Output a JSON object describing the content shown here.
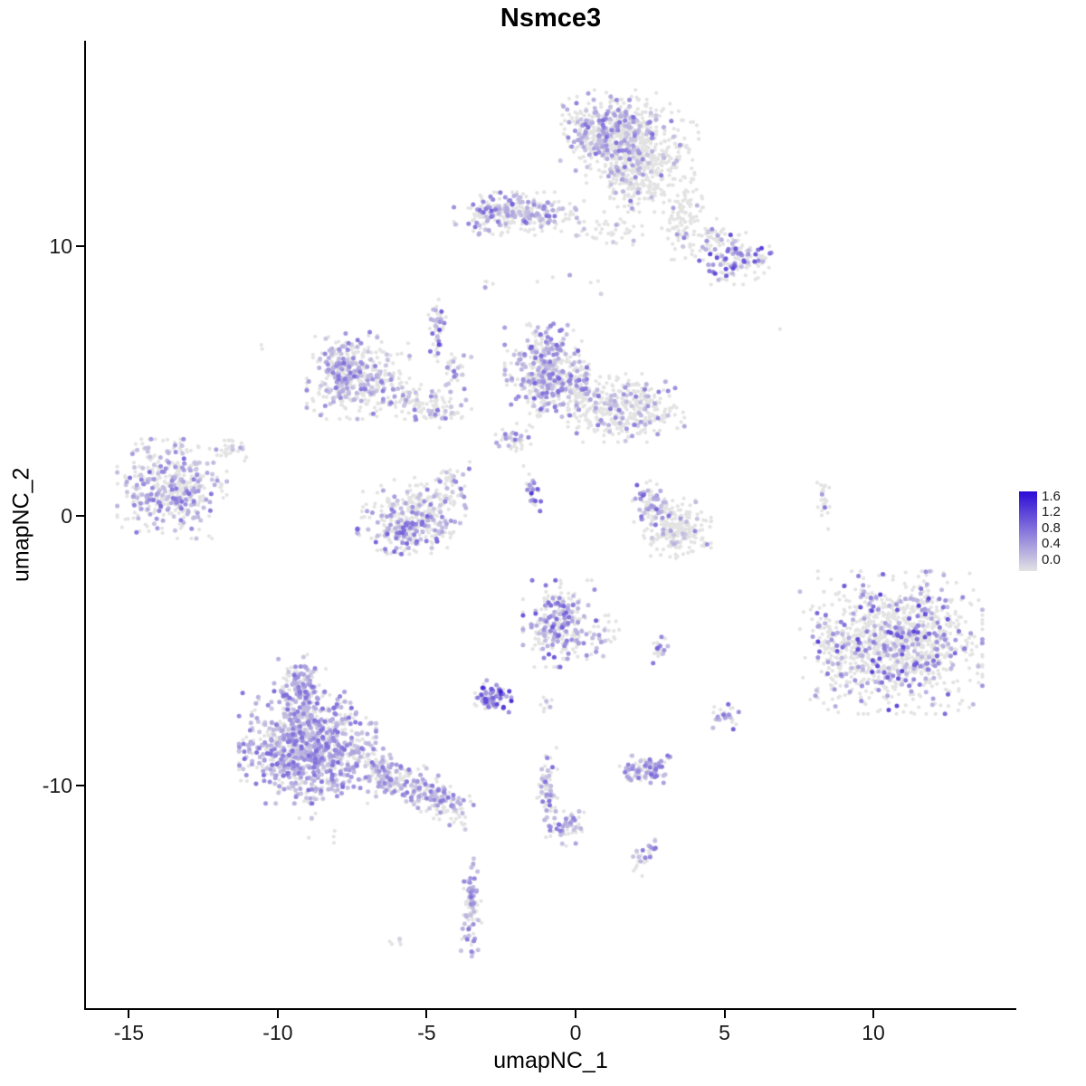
{
  "title": "Nsmce3",
  "axes": {
    "x": {
      "label": "umapNC_1",
      "ticks": [
        -15,
        -10,
        -5,
        0,
        5,
        10
      ]
    },
    "y": {
      "label": "umapNC_2",
      "ticks": [
        -10,
        0,
        10
      ]
    }
  },
  "legend": {
    "ticks": [
      "1.6",
      "1.2",
      "0.8",
      "0.4",
      "0.0"
    ]
  },
  "chart_data": {
    "type": "scatter",
    "title": "Nsmce3",
    "xlabel": "umapNC_1",
    "ylabel": "umapNC_2",
    "xlim": [
      -16.44,
      14.77
    ],
    "ylim": [
      -18.26,
      17.62
    ],
    "grid": false,
    "legend_position": "right",
    "color_scale": {
      "low": "#E3E3E3",
      "high": "#2B0BD5",
      "max": 1.6
    },
    "point_radius_px": 2.1,
    "expressed_point_radius_px": 2.5,
    "seed": 7,
    "clusters": [
      {
        "name": "top-main-left",
        "cx": 1.1,
        "cy": 14.3,
        "sx": 0.7,
        "sy": 0.65,
        "n": 430,
        "frac": 0.35,
        "int": 0.55
      },
      {
        "name": "top-main-right",
        "cx": 2.3,
        "cy": 13.6,
        "sx": 0.85,
        "sy": 0.8,
        "n": 400,
        "frac": 0.12,
        "int": 0.5
      },
      {
        "name": "top-main-lower",
        "cx": 2.0,
        "cy": 12.3,
        "sx": 0.5,
        "sy": 0.45,
        "n": 130,
        "frac": 0.15,
        "int": 0.5
      },
      {
        "name": "top-tail",
        "cx": 3.7,
        "cy": 11.0,
        "sx": 0.35,
        "sy": 0.65,
        "n": 110,
        "frac": 0.12,
        "int": 0.5
      },
      {
        "name": "top-strip",
        "cx": -1.9,
        "cy": 11.2,
        "sx": 0.95,
        "sy": 0.35,
        "n": 240,
        "frac": 0.35,
        "int": 0.55
      },
      {
        "name": "top-strip-left",
        "cx": -2.8,
        "cy": 11.3,
        "sx": 0.35,
        "sy": 0.3,
        "n": 60,
        "frac": 0.5,
        "int": 0.6
      },
      {
        "name": "strip-scatter",
        "cx": 1.1,
        "cy": 10.6,
        "sx": 0.5,
        "sy": 0.3,
        "n": 40,
        "frac": 0.12,
        "int": 0.4
      },
      {
        "name": "top-right-blob",
        "cx": 5.4,
        "cy": 9.5,
        "sx": 0.6,
        "sy": 0.4,
        "n": 150,
        "frac": 0.3,
        "int": 0.75
      },
      {
        "name": "top-right-upper",
        "cx": 4.8,
        "cy": 10.3,
        "sx": 0.4,
        "sy": 0.4,
        "n": 40,
        "frac": 0.15,
        "int": 0.5
      },
      {
        "name": "dot-pair",
        "cx": -2.9,
        "cy": 8.6,
        "sx": 0.12,
        "sy": 0.12,
        "n": 5,
        "frac": 0.2,
        "int": 0.4
      },
      {
        "name": "sparse-nine",
        "cx": -0.3,
        "cy": 8.9,
        "sx": 0.8,
        "sy": 0.3,
        "n": 6,
        "frac": 0.1,
        "int": 0.3
      },
      {
        "name": "midleft-main",
        "cx": -7.3,
        "cy": 5.2,
        "sx": 0.75,
        "sy": 0.7,
        "n": 360,
        "frac": 0.35,
        "int": 0.5
      },
      {
        "name": "midleft-dense",
        "cx": -7.9,
        "cy": 5.4,
        "sx": 0.3,
        "sy": 0.45,
        "n": 90,
        "frac": 0.55,
        "int": 0.55
      },
      {
        "name": "midleft-arm",
        "cx": -5.0,
        "cy": 4.1,
        "sx": 0.65,
        "sy": 0.3,
        "n": 110,
        "frac": 0.3,
        "int": 0.5,
        "rot": -15
      },
      {
        "name": "midleft-vstrip",
        "cx": -4.65,
        "cy": 6.8,
        "sx": 0.13,
        "sy": 0.55,
        "n": 50,
        "frac": 0.5,
        "int": 0.7
      },
      {
        "name": "midleft-diag",
        "cx": -4.0,
        "cy": 5.4,
        "sx": 0.25,
        "sy": 0.35,
        "n": 35,
        "frac": 0.3,
        "int": 0.5
      },
      {
        "name": "center-top",
        "cx": -1.0,
        "cy": 5.4,
        "sx": 0.6,
        "sy": 0.75,
        "n": 420,
        "frac": 0.45,
        "int": 0.6
      },
      {
        "name": "center-top-right",
        "cx": 1.7,
        "cy": 4.0,
        "sx": 0.85,
        "sy": 0.55,
        "n": 360,
        "frac": 0.18,
        "int": 0.5
      },
      {
        "name": "center-bridge",
        "cx": 0.2,
        "cy": 4.7,
        "sx": 0.35,
        "sy": 0.5,
        "n": 60,
        "frac": 0.3,
        "int": 0.5
      },
      {
        "name": "small-below",
        "cx": -2.0,
        "cy": 2.85,
        "sx": 0.3,
        "sy": 0.25,
        "n": 45,
        "frac": 0.3,
        "int": 0.5
      },
      {
        "name": "diag-streak",
        "cx": -1.5,
        "cy": 1.1,
        "sx": 0.1,
        "sy": 0.42,
        "n": 32,
        "frac": 0.55,
        "int": 0.8,
        "rot": 10
      },
      {
        "name": "left-main",
        "cx": -13.55,
        "cy": 1.0,
        "sx": 0.8,
        "sy": 0.8,
        "n": 430,
        "frac": 0.35,
        "int": 0.55
      },
      {
        "name": "left-tail",
        "cx": -11.6,
        "cy": 2.5,
        "sx": 0.3,
        "sy": 0.25,
        "n": 30,
        "frac": 0.2,
        "int": 0.4
      },
      {
        "name": "hook-bottom",
        "cx": -5.6,
        "cy": -0.5,
        "sx": 0.75,
        "sy": 0.4,
        "n": 240,
        "frac": 0.45,
        "int": 0.6
      },
      {
        "name": "hook-top",
        "cx": -5.3,
        "cy": 0.5,
        "sx": 0.8,
        "sy": 0.4,
        "n": 140,
        "frac": 0.15,
        "int": 0.45
      },
      {
        "name": "hook-tip",
        "cx": -4.15,
        "cy": 1.2,
        "sx": 0.3,
        "sy": 0.35,
        "n": 45,
        "frac": 0.3,
        "int": 0.5
      },
      {
        "name": "rcenter-hook",
        "cx": 3.4,
        "cy": -0.5,
        "sx": 0.5,
        "sy": 0.5,
        "n": 250,
        "frac": 0.08,
        "int": 0.5
      },
      {
        "name": "rcenter-hook-top",
        "cx": 2.6,
        "cy": 0.5,
        "sx": 0.3,
        "sy": 0.4,
        "n": 70,
        "frac": 0.4,
        "int": 0.6
      },
      {
        "name": "tiny-strip",
        "cx": 8.3,
        "cy": 0.5,
        "sx": 0.1,
        "sy": 0.45,
        "n": 25,
        "frac": 0.15,
        "int": 0.7
      },
      {
        "name": "right-main",
        "cx": 10.9,
        "cy": -4.7,
        "sx": 1.2,
        "sy": 1.15,
        "n": 1050,
        "frac": 0.22,
        "int": 0.75
      },
      {
        "name": "right-left-edge",
        "cx": 8.8,
        "cy": -5.0,
        "sx": 0.55,
        "sy": 0.95,
        "n": 130,
        "frac": 0.2,
        "int": 0.6
      },
      {
        "name": "center-mid",
        "cx": -0.5,
        "cy": -4.0,
        "sx": 0.55,
        "sy": 0.7,
        "n": 280,
        "frac": 0.4,
        "int": 0.65
      },
      {
        "name": "center-mid-side",
        "cx": 1.1,
        "cy": -4.4,
        "sx": 0.25,
        "sy": 0.35,
        "n": 20,
        "frac": 0.3,
        "int": 0.5
      },
      {
        "name": "tiny-right",
        "cx": 2.8,
        "cy": -5.0,
        "sx": 0.18,
        "sy": 0.22,
        "n": 25,
        "frac": 0.5,
        "int": 0.6
      },
      {
        "name": "small-dense",
        "cx": -2.8,
        "cy": -6.7,
        "sx": 0.28,
        "sy": 0.26,
        "n": 85,
        "frac": 0.55,
        "int": 0.95
      },
      {
        "name": "tiny-neighbor",
        "cx": -1.0,
        "cy": -7.0,
        "sx": 0.15,
        "sy": 0.2,
        "n": 10,
        "frac": 0.3,
        "int": 0.5
      },
      {
        "name": "tiny-ring",
        "cx": 5.0,
        "cy": -7.45,
        "sx": 0.25,
        "sy": 0.2,
        "n": 30,
        "frac": 0.5,
        "int": 0.6
      },
      {
        "name": "botleft-main",
        "cx": -9.0,
        "cy": -8.6,
        "sx": 1.0,
        "sy": 0.9,
        "n": 950,
        "frac": 0.6,
        "int": 0.55
      },
      {
        "name": "botleft-top",
        "cx": -9.2,
        "cy": -6.3,
        "sx": 0.4,
        "sy": 0.5,
        "n": 120,
        "frac": 0.6,
        "int": 0.55
      },
      {
        "name": "botleft-tail1",
        "cx": -6.3,
        "cy": -9.6,
        "sx": 0.6,
        "sy": 0.35,
        "n": 150,
        "frac": 0.5,
        "int": 0.5,
        "rot": -25
      },
      {
        "name": "botleft-tail2",
        "cx": -4.7,
        "cy": -10.4,
        "sx": 0.5,
        "sy": 0.35,
        "n": 120,
        "frac": 0.45,
        "int": 0.5,
        "rot": -25
      },
      {
        "name": "botleft-tailend",
        "cx": -4.0,
        "cy": -11.1,
        "sx": 0.25,
        "sy": 0.25,
        "n": 25,
        "frac": 0.3,
        "int": 0.45
      },
      {
        "name": "botleft-below",
        "cx": -8.7,
        "cy": -11.6,
        "sx": 0.4,
        "sy": 0.3,
        "n": 8,
        "frac": 0.15,
        "int": 0.3
      },
      {
        "name": "small-horizontal",
        "cx": 2.4,
        "cy": -9.4,
        "sx": 0.4,
        "sy": 0.22,
        "n": 90,
        "frac": 0.55,
        "int": 0.6
      },
      {
        "name": "vstreak-center",
        "cx": -0.95,
        "cy": -10.1,
        "sx": 0.15,
        "sy": 0.65,
        "n": 65,
        "frac": 0.4,
        "int": 0.6
      },
      {
        "name": "blob-below",
        "cx": -0.35,
        "cy": -11.6,
        "sx": 0.28,
        "sy": 0.28,
        "n": 55,
        "frac": 0.5,
        "int": 0.6
      },
      {
        "name": "diag-small",
        "cx": 2.35,
        "cy": -12.6,
        "sx": 0.15,
        "sy": 0.3,
        "n": 28,
        "frac": 0.5,
        "int": 0.55,
        "rot": -35
      },
      {
        "name": "vstreak-bottom",
        "cx": -3.5,
        "cy": -14.5,
        "sx": 0.15,
        "sy": 0.8,
        "n": 85,
        "frac": 0.45,
        "int": 0.55
      },
      {
        "name": "tiny-bottom",
        "cx": -6.0,
        "cy": -15.9,
        "sx": 0.2,
        "sy": 0.12,
        "n": 5,
        "frac": 0.2,
        "int": 0.3
      },
      {
        "name": "single-left",
        "cx": -10.5,
        "cy": 6.3,
        "sx": 0.1,
        "sy": 0.1,
        "n": 2,
        "frac": 0.0,
        "int": 0.0
      },
      {
        "name": "single-right",
        "cx": 6.8,
        "cy": 6.9,
        "sx": 0.05,
        "sy": 0.05,
        "n": 1,
        "frac": 0.0,
        "int": 0.0
      }
    ]
  }
}
